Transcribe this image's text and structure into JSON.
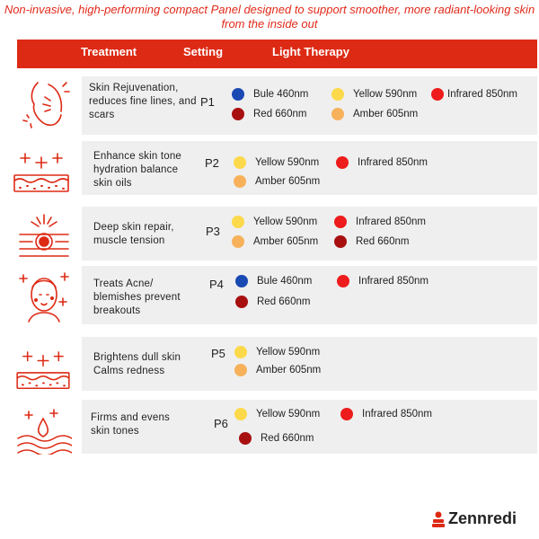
{
  "subtitle": "Non-invasive, high-performing compact Panel designed to support smoother, more radiant-looking skin from the inside out",
  "header": {
    "treatment": "Treatment",
    "setting": "Setting",
    "light": "Light Therapy"
  },
  "colors": {
    "accent": "#dd2a14",
    "blue": "#1a49b3",
    "yellow": "#fcd94a",
    "red": "#ee1c1c",
    "darkred": "#a81010",
    "amber": "#f7b15b"
  },
  "rows": [
    {
      "icon": "face-rejuvenation-icon",
      "treatment": "Skin Rejuvenation, reduces fine lines, and scars",
      "setting": "P1",
      "lights": [
        {
          "color": "blue",
          "label": "Bule 460nm"
        },
        {
          "color": "yellow",
          "label": "Yellow 590nm"
        },
        {
          "color": "red",
          "label": "Infrared 850nm"
        },
        {
          "color": "darkred",
          "label": "Red 660nm"
        },
        {
          "color": "amber",
          "label": "Amber 605nm"
        }
      ]
    },
    {
      "icon": "skin-layer-sparkle-icon",
      "treatment": "Enhance skin tone hydration balance skin oils",
      "setting": "P2",
      "lights": [
        {
          "color": "yellow",
          "label": "Yellow 590nm"
        },
        {
          "color": "red",
          "label": "Infrared 850nm"
        },
        {
          "color": "amber",
          "label": "Amber 605nm"
        }
      ]
    },
    {
      "icon": "deep-skin-repair-icon",
      "treatment": "Deep skin repair, muscle tension",
      "setting": "P3",
      "lights": [
        {
          "color": "yellow",
          "label": "Yellow 590nm"
        },
        {
          "color": "red",
          "label": "Infrared 850nm"
        },
        {
          "color": "amber",
          "label": "Amber 605nm"
        },
        {
          "color": "darkred",
          "label": "Red 660nm"
        }
      ]
    },
    {
      "icon": "face-acne-icon",
      "treatment": "Treats Acne/ blemishes prevent breakouts",
      "setting": "P4",
      "lights": [
        {
          "color": "blue",
          "label": "Bule 460nm"
        },
        {
          "color": "red",
          "label": "Infrared 850nm"
        },
        {
          "color": "darkred",
          "label": "Red 660nm"
        }
      ]
    },
    {
      "icon": "skin-layer-sparkle-icon",
      "treatment": "Brightens dull skin Calms redness",
      "setting": "P5",
      "lights": [
        {
          "color": "yellow",
          "label": "Yellow 590nm"
        },
        {
          "color": "amber",
          "label": "Amber 605nm"
        }
      ]
    },
    {
      "icon": "skin-firming-icon",
      "treatment": "Firms and evens skin tones",
      "setting": "P6",
      "lights": [
        {
          "color": "yellow",
          "label": "Yellow 590nm"
        },
        {
          "color": "red",
          "label": "Infrared 850nm"
        },
        {
          "color": "darkred",
          "label": "Red 660nm"
        }
      ]
    }
  ],
  "brand": {
    "name": "Zennredi",
    "logo_icon": "brand-logo-icon"
  }
}
